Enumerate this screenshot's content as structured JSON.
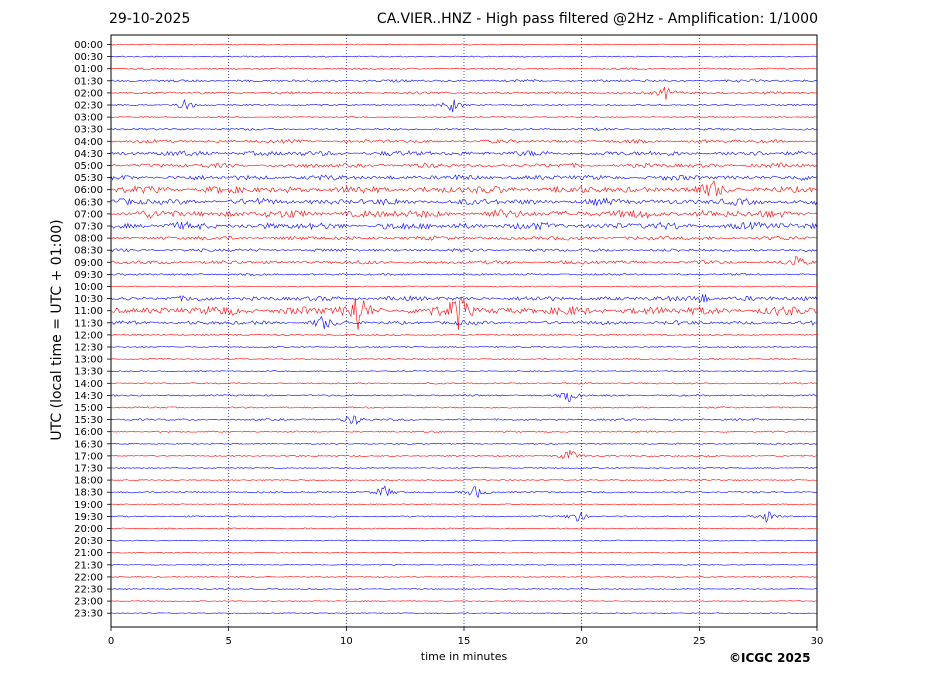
{
  "header": {
    "date": "29-10-2025",
    "title": "CA.VIER..HNZ - High pass filtered @2Hz - Amplification: 1/1000"
  },
  "footer": {
    "copyright": "©ICGC 2025"
  },
  "chart_data": {
    "type": "line",
    "title": "CA.VIER..HNZ - High pass filtered @2Hz - Amplification: 1/1000",
    "xlabel": "time in minutes",
    "ylabel": "UTC (local time = UTC + 01:00)",
    "xlim": [
      0,
      30
    ],
    "xticks": [
      0,
      5,
      10,
      15,
      20,
      25,
      30
    ],
    "vertical_gridlines": [
      5,
      10,
      15,
      20,
      25
    ],
    "grid": "dotted vertical",
    "trace_colors": [
      "#ff0000",
      "#0000ff"
    ],
    "rows": [
      "00:00",
      "00:30",
      "01:00",
      "01:30",
      "02:00",
      "02:30",
      "03:00",
      "03:30",
      "04:00",
      "04:30",
      "05:00",
      "05:30",
      "06:00",
      "06:30",
      "07:00",
      "07:30",
      "08:00",
      "08:30",
      "09:00",
      "09:30",
      "10:00",
      "10:30",
      "11:00",
      "11:30",
      "12:00",
      "12:30",
      "13:00",
      "13:30",
      "14:00",
      "14:30",
      "15:00",
      "15:30",
      "16:00",
      "16:30",
      "17:00",
      "17:30",
      "18:00",
      "18:30",
      "19:00",
      "19:30",
      "20:00",
      "20:30",
      "21:00",
      "21:30",
      "22:00",
      "22:30",
      "23:00",
      "23:30"
    ],
    "activity": [
      0.03,
      0.06,
      0.1,
      0.22,
      0.2,
      0.1,
      0.03,
      0.18,
      0.32,
      0.55,
      0.45,
      0.55,
      0.85,
      0.7,
      0.9,
      0.8,
      0.4,
      0.3,
      0.35,
      0.15,
      0.05,
      0.5,
      1.0,
      0.4,
      0.08,
      0.08,
      0.05,
      0.06,
      0.1,
      0.12,
      0.1,
      0.15,
      0.1,
      0.08,
      0.08,
      0.04,
      0.05,
      0.12,
      0.04,
      0.08,
      0.06,
      0.03,
      0.02,
      0.02,
      0.02,
      0.02,
      0.02,
      0.02
    ],
    "events": [
      {
        "row": "02:00",
        "minute": 23.6
      },
      {
        "row": "02:30",
        "minute": 3.1
      },
      {
        "row": "02:30",
        "minute": 14.5
      },
      {
        "row": "06:00",
        "minute": 25.6
      },
      {
        "row": "09:00",
        "minute": 29.1
      },
      {
        "row": "10:30",
        "minute": 25.1
      },
      {
        "row": "11:00",
        "minute": 14.8
      },
      {
        "row": "11:00",
        "minute": 10.5
      },
      {
        "row": "11:30",
        "minute": 9.0
      },
      {
        "row": "14:30",
        "minute": 19.5
      },
      {
        "row": "15:30",
        "minute": 10.3
      },
      {
        "row": "17:00",
        "minute": 19.5
      },
      {
        "row": "18:30",
        "minute": 11.6
      },
      {
        "row": "18:30",
        "minute": 15.5
      },
      {
        "row": "19:30",
        "minute": 27.9
      },
      {
        "row": "19:30",
        "minute": 19.8
      }
    ]
  }
}
